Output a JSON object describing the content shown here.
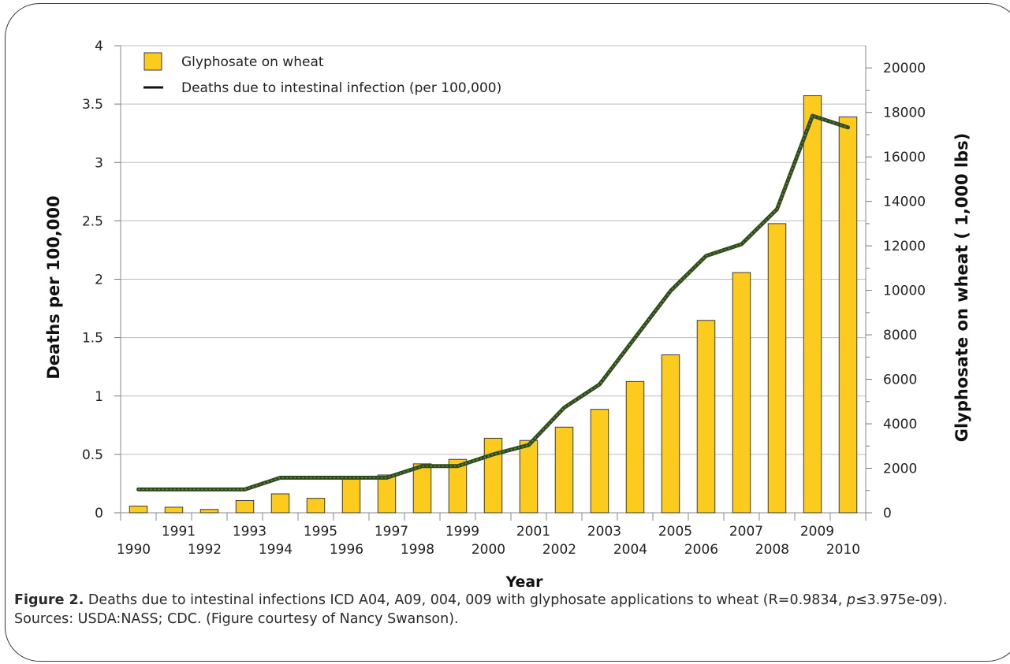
{
  "chart_data": {
    "type": "bar+line",
    "xlabel": "Year",
    "ylabel_left": "Deaths per 100,000",
    "ylabel_right": "Glyphosate on wheat ( 1,000 lbs)",
    "categories": [
      "1990",
      "1991",
      "1992",
      "1993",
      "1994",
      "1995",
      "1996",
      "1997",
      "1998",
      "1999",
      "2000",
      "2001",
      "2002",
      "2003",
      "2004",
      "2005",
      "2006",
      "2007",
      "2008",
      "2009",
      "2010"
    ],
    "ylim_left": [
      0,
      4
    ],
    "yticks_left": [
      "0",
      "0.5",
      "1",
      "1.5",
      "2",
      "2.5",
      "3",
      "3.5",
      "4"
    ],
    "ylim_right": [
      0,
      21000
    ],
    "yticks_right": [
      "0",
      "2000",
      "4000",
      "6000",
      "8000",
      "10000",
      "12000",
      "14000",
      "16000",
      "18000",
      "20000"
    ],
    "grid": "horizontal",
    "legend_position": "top-left",
    "series": [
      {
        "name": "Glyphosate on wheat",
        "type": "bar",
        "axis": "right",
        "color": "#FCCB1E",
        "values": [
          300,
          250,
          150,
          550,
          850,
          650,
          1600,
          1700,
          2200,
          2400,
          3350,
          3250,
          3850,
          4650,
          5900,
          7100,
          8650,
          10800,
          13000,
          18750,
          17800
        ]
      },
      {
        "name": "Deaths due to intestinal infection (per 100,000)",
        "type": "line",
        "axis": "left",
        "color": "#2F4A1E",
        "values": [
          0.2,
          0.2,
          0.2,
          0.2,
          0.3,
          0.3,
          0.3,
          0.3,
          0.4,
          0.4,
          0.5,
          0.58,
          0.9,
          1.1,
          1.5,
          1.9,
          2.2,
          2.3,
          2.6,
          3.4,
          3.3
        ]
      }
    ]
  },
  "caption": {
    "label": "Figure 2.",
    "text_a": " Deaths due to intestinal infections ICD A04, A09, 004, 009 with glyphosate applications to wheat (R=0.9834, ",
    "p": "p",
    "text_b": "≤3.975e-09). Sources: USDA:NASS; CDC. (Figure courtesy of Nancy Swanson)."
  }
}
